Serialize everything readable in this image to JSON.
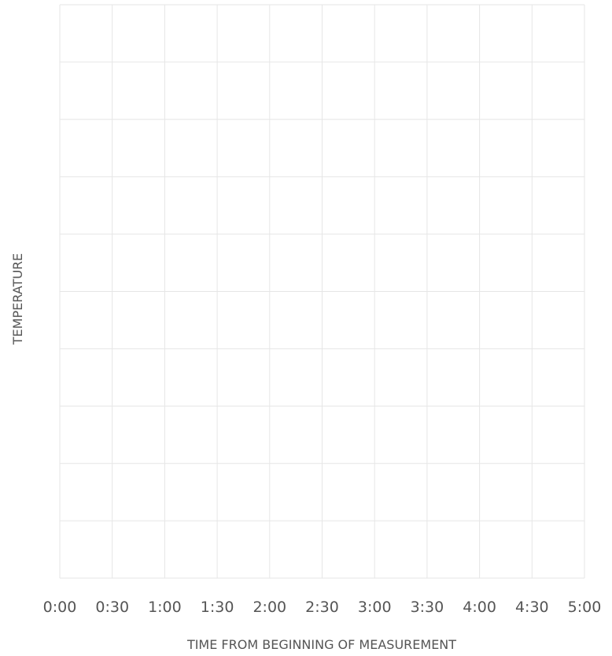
{
  "chart_data": {
    "type": "line",
    "xlabel": "TIME FROM BEGINNING OF MEASUREMENT",
    "ylabel": "TEMPERATURE",
    "x_tick_labels": [
      "0:00",
      "0:30",
      "1:00",
      "1:30",
      "2:00",
      "2:30",
      "3:00",
      "3:30",
      "4:00",
      "4:30",
      "5:00"
    ],
    "y_gridlines": 10,
    "series": [],
    "grid": true,
    "colors": {
      "grid": "#e6e6e6",
      "text": "#555555"
    }
  }
}
